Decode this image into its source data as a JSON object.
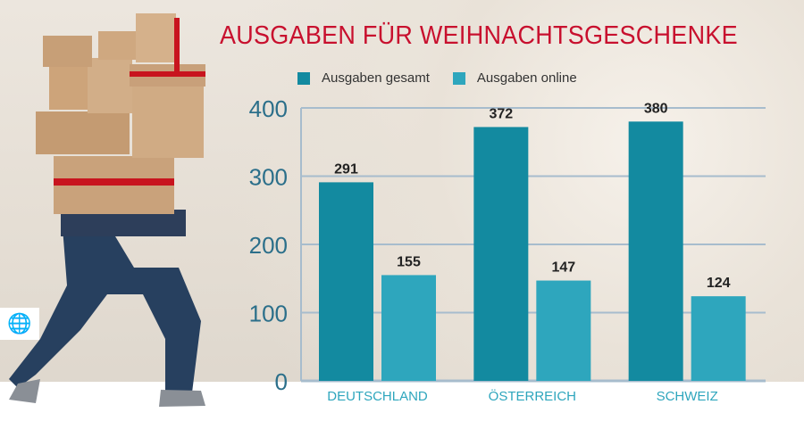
{
  "chart_data": {
    "type": "bar",
    "title": "AUSGABEN FÜR WEIHNACHTSGESCHENKE",
    "categories": [
      "DEUTSCHLAND",
      "ÖSTERREICH",
      "SCHWEIZ"
    ],
    "series": [
      {
        "name": "Ausgaben gesamt",
        "values": [
          291,
          372,
          380
        ],
        "color": "#138aa0"
      },
      {
        "name": "Ausgaben online",
        "values": [
          155,
          147,
          124
        ],
        "color": "#2ea6bd"
      }
    ],
    "yticks": [
      0,
      100,
      200,
      300,
      400
    ],
    "ylim": [
      0,
      400
    ],
    "grid": true,
    "legend": "top",
    "xlabel": "",
    "ylabel": ""
  },
  "icons": {
    "globe": "globe-arrow-icon"
  }
}
